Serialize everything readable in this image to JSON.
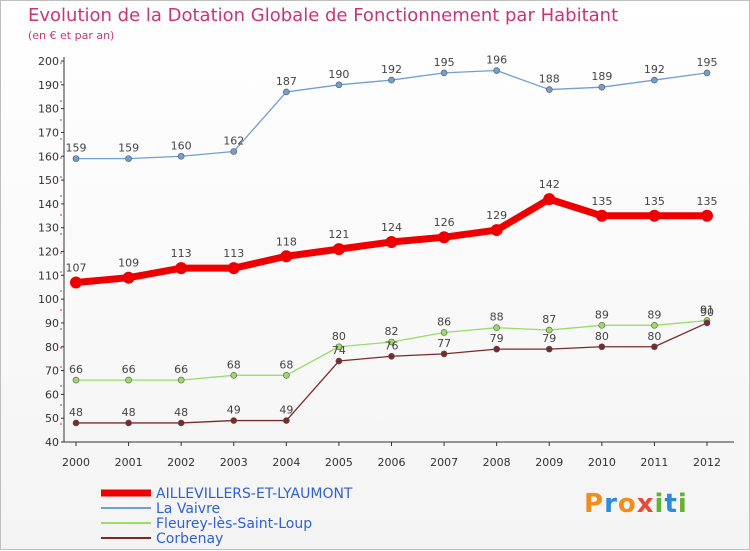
{
  "header": {
    "title": "Evolution de la Dotation Globale de Fonctionnement par Habitant",
    "subtitle": "(en € et par an)"
  },
  "logo": {
    "text": "Proxiti",
    "letters": [
      "P",
      "r",
      "o",
      "x",
      "i",
      "t",
      "i"
    ],
    "colors": [
      "#f28c1a",
      "#2e8bd6",
      "#f28c1a",
      "#e84a3a",
      "#66b032",
      "#2e8bd6",
      "#66b032"
    ]
  },
  "chart_data": {
    "type": "line",
    "title": "Evolution de la Dotation Globale de Fonctionnement par Habitant",
    "subtitle": "(en € et par an)",
    "xlabel": "",
    "ylabel": "",
    "x": [
      "2000",
      "2001",
      "2002",
      "2003",
      "2004",
      "2005",
      "2006",
      "2007",
      "2008",
      "2009",
      "2010",
      "2011",
      "2012"
    ],
    "ylim": [
      40,
      200
    ],
    "yticks": [
      40,
      50,
      60,
      70,
      80,
      90,
      100,
      110,
      120,
      130,
      140,
      150,
      160,
      170,
      180,
      190,
      200
    ],
    "grid": false,
    "legend": "bottom-left",
    "series": [
      {
        "name": "AILLEVILLERS-ET-LYAUMONT",
        "color": "#ee0000",
        "emphasis": true,
        "values": [
          107,
          109,
          113,
          113,
          118,
          121,
          124,
          126,
          129,
          142,
          135,
          135,
          135
        ]
      },
      {
        "name": "La Vaivre",
        "color": "#6f9fd3",
        "emphasis": false,
        "values": [
          159,
          159,
          160,
          162,
          187,
          190,
          192,
          195,
          196,
          188,
          189,
          192,
          195
        ]
      },
      {
        "name": "Fleurey-lès-Saint-Loup",
        "color": "#99dd66",
        "emphasis": false,
        "values": [
          66,
          66,
          66,
          68,
          68,
          80,
          82,
          86,
          88,
          87,
          89,
          89,
          91
        ]
      },
      {
        "name": "Corbenay",
        "color": "#7a2a2a",
        "emphasis": false,
        "values": [
          48,
          48,
          48,
          49,
          49,
          74,
          76,
          77,
          79,
          79,
          80,
          80,
          90
        ]
      }
    ]
  }
}
